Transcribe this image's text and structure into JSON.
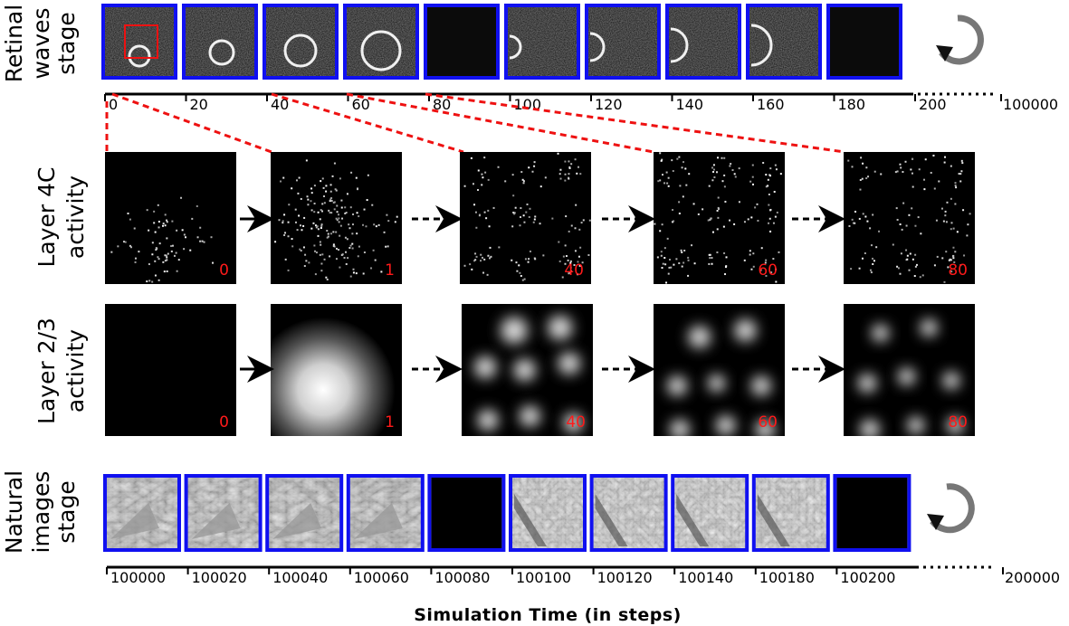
{
  "retinal": {
    "label_line1": "Retinal",
    "label_line2": "waves",
    "label_line3": "stage",
    "ticks": [
      "0",
      "20",
      "40",
      "60",
      "80",
      "100",
      "120",
      "140",
      "160",
      "180",
      "200"
    ],
    "end_tick": "100000"
  },
  "layer4c": {
    "label_line1": "Layer 4C",
    "label_line2": "activity",
    "frames": [
      "0",
      "1",
      "40",
      "60",
      "80"
    ]
  },
  "layer23": {
    "label_line1": "Layer 2/3",
    "label_line2": "activity",
    "frames": [
      "0",
      "1",
      "40",
      "60",
      "80"
    ]
  },
  "natural": {
    "label_line1": "Natural",
    "label_line2": "images",
    "label_line3": "stage",
    "ticks": [
      "100000",
      "100020",
      "100040",
      "100060",
      "100080",
      "100100",
      "100120",
      "100140",
      "100180",
      "100200"
    ],
    "end_tick": "200000"
  },
  "axis_title": "Simulation Time (in steps)",
  "colors": {
    "frame_border": "#1010f0",
    "highlight": "#ee1111",
    "loop_arrow": "#777777"
  }
}
